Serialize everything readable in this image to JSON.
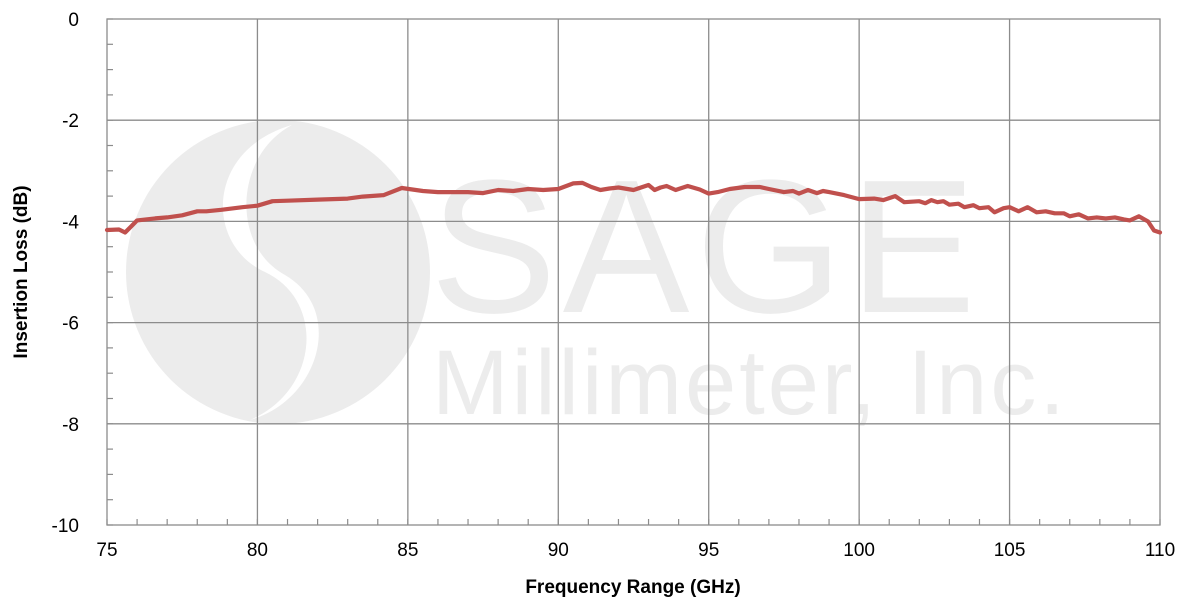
{
  "chart_data": {
    "type": "line",
    "xlabel": "Frequency Range (GHz)",
    "ylabel": "Insertion Loss (dB)",
    "xlim": [
      75,
      110
    ],
    "ylim": [
      -10,
      0
    ],
    "x_ticks": [
      "75",
      "80",
      "85",
      "90",
      "95",
      "100",
      "105",
      "110"
    ],
    "y_ticks": [
      "0",
      "-2",
      "-4",
      "-6",
      "-8",
      "-10"
    ],
    "grid": true,
    "legend": "none",
    "series": [
      {
        "color": "#c0504d",
        "x": [
          75.0,
          75.4,
          75.6,
          75.8,
          76.0,
          76.3,
          76.6,
          77.0,
          77.5,
          78.0,
          78.3,
          78.8,
          79.5,
          80.0,
          80.5,
          81.0,
          82.0,
          83.0,
          83.5,
          84.2,
          84.8,
          85.5,
          86.0,
          87.0,
          87.5,
          88.0,
          88.5,
          89.0,
          89.5,
          90.0,
          90.5,
          90.8,
          91.1,
          91.4,
          91.7,
          92.0,
          92.5,
          93.0,
          93.2,
          93.4,
          93.6,
          93.9,
          94.3,
          94.7,
          95.0,
          95.3,
          95.7,
          96.2,
          96.7,
          97.0,
          97.5,
          97.8,
          98.0,
          98.3,
          98.6,
          98.8,
          99.0,
          99.5,
          100.0,
          100.5,
          100.8,
          101.0,
          101.2,
          101.5,
          102.0,
          102.2,
          102.4,
          102.6,
          102.8,
          103.0,
          103.3,
          103.5,
          103.8,
          104.0,
          104.3,
          104.5,
          104.8,
          105.0,
          105.3,
          105.6,
          105.9,
          106.2,
          106.5,
          106.8,
          107.0,
          107.3,
          107.6,
          107.9,
          108.2,
          108.5,
          108.8,
          109.0,
          109.3,
          109.6,
          109.8,
          110.0
        ],
        "y": [
          -4.17,
          -4.16,
          -4.22,
          -4.1,
          -3.98,
          -3.96,
          -3.94,
          -3.92,
          -3.88,
          -3.8,
          -3.8,
          -3.77,
          -3.72,
          -3.69,
          -3.6,
          -3.59,
          -3.57,
          -3.55,
          -3.51,
          -3.48,
          -3.34,
          -3.4,
          -3.42,
          -3.42,
          -3.44,
          -3.38,
          -3.4,
          -3.36,
          -3.38,
          -3.36,
          -3.25,
          -3.24,
          -3.32,
          -3.38,
          -3.35,
          -3.33,
          -3.38,
          -3.28,
          -3.38,
          -3.33,
          -3.3,
          -3.38,
          -3.3,
          -3.37,
          -3.45,
          -3.42,
          -3.36,
          -3.32,
          -3.32,
          -3.36,
          -3.42,
          -3.4,
          -3.45,
          -3.38,
          -3.44,
          -3.4,
          -3.42,
          -3.48,
          -3.56,
          -3.55,
          -3.58,
          -3.54,
          -3.5,
          -3.62,
          -3.6,
          -3.64,
          -3.58,
          -3.62,
          -3.6,
          -3.67,
          -3.65,
          -3.72,
          -3.68,
          -3.74,
          -3.72,
          -3.82,
          -3.74,
          -3.72,
          -3.8,
          -3.72,
          -3.82,
          -3.8,
          -3.84,
          -3.84,
          -3.9,
          -3.86,
          -3.94,
          -3.92,
          -3.94,
          -3.92,
          -3.96,
          -3.98,
          -3.9,
          -4.0,
          -4.18,
          -4.22
        ]
      }
    ]
  },
  "watermark": {
    "line1": "SAGE",
    "line2": "Millimeter, Inc."
  }
}
